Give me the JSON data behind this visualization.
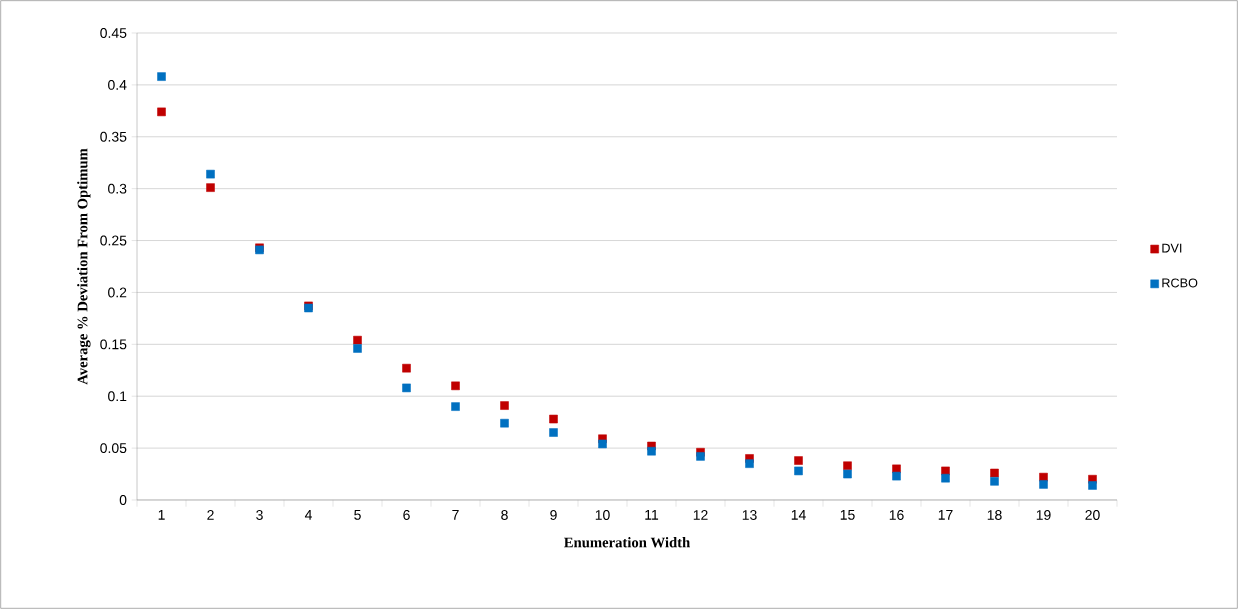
{
  "chart_data": {
    "type": "scatter",
    "categories": [
      "1",
      "2",
      "3",
      "4",
      "5",
      "6",
      "7",
      "8",
      "9",
      "10",
      "11",
      "12",
      "13",
      "14",
      "15",
      "16",
      "17",
      "18",
      "19",
      "20"
    ],
    "series": [
      {
        "name": "DVI",
        "color": "#c00000",
        "values": [
          0.374,
          0.301,
          0.243,
          0.187,
          0.154,
          0.127,
          0.11,
          0.091,
          0.078,
          0.059,
          0.052,
          0.046,
          0.04,
          0.038,
          0.033,
          0.03,
          0.028,
          0.026,
          0.022,
          0.02
        ]
      },
      {
        "name": "RCBO",
        "color": "#0070c0",
        "values": [
          0.408,
          0.314,
          0.241,
          0.185,
          0.146,
          0.108,
          0.09,
          0.074,
          0.065,
          0.054,
          0.047,
          0.042,
          0.035,
          0.028,
          0.025,
          0.023,
          0.021,
          0.018,
          0.015,
          0.014
        ]
      }
    ],
    "xlabel": "Enumeration Width",
    "ylabel": "Average % Deviation From Optimum",
    "ylim": [
      0,
      0.45
    ],
    "yticks": [
      0,
      0.05,
      0.1,
      0.15,
      0.2,
      0.25,
      0.3,
      0.35,
      0.4,
      0.45
    ],
    "grid": "y",
    "legend": "right",
    "marker": "square"
  }
}
